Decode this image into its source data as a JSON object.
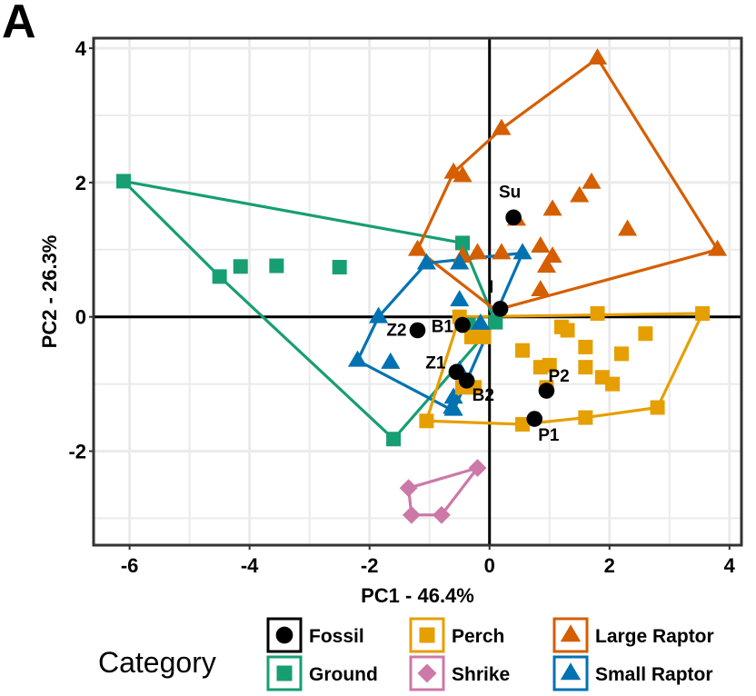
{
  "chart_data": {
    "type": "scatter",
    "panel_label": "A",
    "title": "",
    "xlabel": "PC1 - 46.4%",
    "ylabel": "PC2 - 26.3%",
    "xlim": [
      -6.6,
      4.2
    ],
    "ylim": [
      -3.4,
      4.15
    ],
    "xticks": [
      -6,
      -4,
      -2,
      0,
      2,
      4
    ],
    "yticks": [
      -2,
      0,
      2,
      4
    ],
    "xtick_labels": [
      "-6",
      "-4",
      "-2",
      "0",
      "2",
      "4"
    ],
    "ytick_labels": [
      "-2",
      "0",
      "2",
      "4"
    ],
    "grid": true,
    "reference_lines": {
      "x": 0,
      "y": 0
    },
    "legend": {
      "title": "Category",
      "position": "bottom",
      "entries": [
        {
          "label": "Fossil",
          "shape": "circle",
          "color": "#000000"
        },
        {
          "label": "Ground",
          "shape": "square",
          "color": "#179e73"
        },
        {
          "label": "Perch",
          "shape": "square",
          "color": "#e69f00"
        },
        {
          "label": "Shrike",
          "shape": "diamond",
          "color": "#cc79a7"
        },
        {
          "label": "Large Raptor",
          "shape": "triangle",
          "color": "#d55e00"
        },
        {
          "label": "Small Raptor",
          "shape": "triangle",
          "color": "#0072b2"
        }
      ]
    },
    "series": [
      {
        "name": "Ground",
        "shape": "square",
        "color": "#179e73",
        "points": [
          [
            -6.1,
            2.02
          ],
          [
            -4.5,
            0.6
          ],
          [
            -4.15,
            0.75
          ],
          [
            -3.55,
            0.76
          ],
          [
            -2.5,
            0.74
          ],
          [
            -1.6,
            -1.82
          ],
          [
            -0.45,
            1.1
          ],
          [
            0.1,
            -0.08
          ],
          [
            -0.35,
            -0.12
          ]
        ],
        "hull": [
          [
            -6.1,
            2.02
          ],
          [
            -0.45,
            1.1
          ],
          [
            0.1,
            -0.08
          ],
          [
            -1.6,
            -1.82
          ],
          [
            -4.5,
            0.6
          ]
        ]
      },
      {
        "name": "Perch",
        "shape": "square",
        "color": "#e69f00",
        "points": [
          [
            -1.05,
            -1.55
          ],
          [
            -0.5,
            0.0
          ],
          [
            -0.3,
            -0.3
          ],
          [
            -0.1,
            -0.3
          ],
          [
            -0.45,
            -1.05
          ],
          [
            -0.25,
            -1.05
          ],
          [
            0.55,
            -0.5
          ],
          [
            0.55,
            -1.6
          ],
          [
            0.85,
            -0.75
          ],
          [
            0.95,
            -1.05
          ],
          [
            1.0,
            -0.72
          ],
          [
            1.2,
            -0.15
          ],
          [
            1.3,
            -0.2
          ],
          [
            1.6,
            -0.45
          ],
          [
            1.6,
            -0.75
          ],
          [
            1.6,
            -1.5
          ],
          [
            1.8,
            0.05
          ],
          [
            1.88,
            -0.9
          ],
          [
            2.2,
            -0.55
          ],
          [
            2.05,
            -1.0
          ],
          [
            2.6,
            -0.25
          ],
          [
            2.8,
            -1.35
          ],
          [
            3.55,
            0.05
          ]
        ],
        "hull": [
          [
            -1.05,
            -1.55
          ],
          [
            -0.5,
            0.0
          ],
          [
            3.55,
            0.05
          ],
          [
            2.8,
            -1.35
          ],
          [
            1.6,
            -1.5
          ],
          [
            0.55,
            -1.6
          ]
        ]
      },
      {
        "name": "Shrike",
        "shape": "diamond",
        "color": "#cc79a7",
        "points": [
          [
            -1.35,
            -2.55
          ],
          [
            -0.2,
            -2.25
          ],
          [
            -0.8,
            -2.95
          ],
          [
            -1.3,
            -2.95
          ]
        ],
        "hull": [
          [
            -1.35,
            -2.55
          ],
          [
            -0.2,
            -2.25
          ],
          [
            -0.8,
            -2.95
          ],
          [
            -1.3,
            -2.95
          ]
        ]
      },
      {
        "name": "Large Raptor",
        "shape": "triangle",
        "color": "#d55e00",
        "points": [
          [
            1.8,
            3.85
          ],
          [
            0.2,
            2.8
          ],
          [
            -0.6,
            2.15
          ],
          [
            -0.45,
            2.1
          ],
          [
            -1.2,
            1.0
          ],
          [
            -0.45,
            0.9
          ],
          [
            -0.2,
            0.95
          ],
          [
            0.2,
            0.95
          ],
          [
            0.45,
            1.45
          ],
          [
            0.85,
            1.05
          ],
          [
            0.95,
            0.75
          ],
          [
            1.05,
            1.6
          ],
          [
            1.5,
            1.8
          ],
          [
            1.7,
            2.0
          ],
          [
            1.05,
            0.9
          ],
          [
            2.3,
            1.3
          ],
          [
            0.85,
            0.4
          ],
          [
            3.8,
            1.0
          ]
        ],
        "hull": [
          [
            1.8,
            3.85
          ],
          [
            3.8,
            1.0
          ],
          [
            0.1,
            0.1
          ],
          [
            -1.2,
            1.0
          ],
          [
            -0.6,
            2.15
          ],
          [
            0.2,
            2.8
          ]
        ]
      },
      {
        "name": "Small Raptor",
        "shape": "triangle",
        "color": "#0072b2",
        "points": [
          [
            -1.85,
            0.0
          ],
          [
            -1.05,
            0.8
          ],
          [
            -0.5,
            0.8
          ],
          [
            -0.5,
            0.25
          ],
          [
            0.55,
            0.95
          ],
          [
            -2.2,
            -0.65
          ],
          [
            -1.65,
            -0.68
          ],
          [
            -0.5,
            -0.8
          ],
          [
            -0.6,
            -1.2
          ],
          [
            -0.62,
            -1.35
          ],
          [
            -0.6,
            -1.38
          ],
          [
            -0.15,
            -0.1
          ]
        ],
        "hull": [
          [
            -1.85,
            0.0
          ],
          [
            -1.05,
            0.8
          ],
          [
            0.55,
            0.95
          ],
          [
            -0.6,
            -1.4
          ],
          [
            -2.2,
            -0.65
          ]
        ]
      },
      {
        "name": "Fossil",
        "shape": "circle",
        "color": "#000000",
        "points": [
          {
            "x": 0.4,
            "y": 1.48,
            "label": "Su"
          },
          {
            "x": 0.18,
            "y": 0.12,
            "label": "I"
          },
          {
            "x": -1.2,
            "y": -0.2,
            "label": "Z2"
          },
          {
            "x": -0.45,
            "y": -0.12,
            "label": "B1"
          },
          {
            "x": -0.55,
            "y": -0.82,
            "label": "Z1"
          },
          {
            "x": -0.38,
            "y": -0.95,
            "label": "B2"
          },
          {
            "x": 0.95,
            "y": -1.1,
            "label": "P2"
          },
          {
            "x": 0.75,
            "y": -1.52,
            "label": "P1"
          }
        ]
      }
    ]
  }
}
